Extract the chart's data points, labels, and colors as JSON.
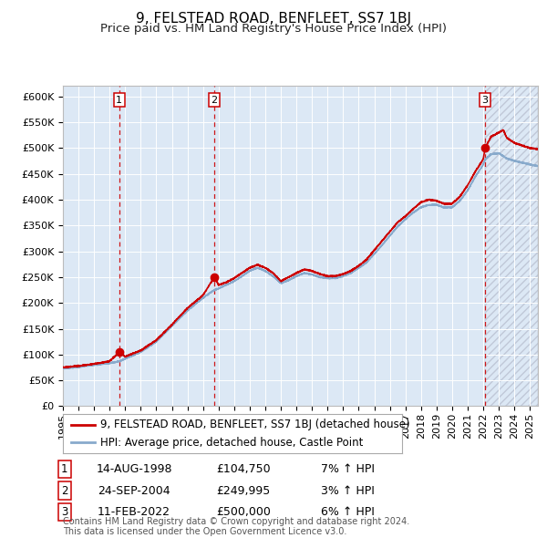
{
  "title": "9, FELSTEAD ROAD, BENFLEET, SS7 1BJ",
  "subtitle": "Price paid vs. HM Land Registry's House Price Index (HPI)",
  "ylim": [
    0,
    620000
  ],
  "yticks": [
    0,
    50000,
    100000,
    150000,
    200000,
    250000,
    300000,
    350000,
    400000,
    450000,
    500000,
    550000,
    600000
  ],
  "ytick_labels": [
    "£0",
    "£50K",
    "£100K",
    "£150K",
    "£200K",
    "£250K",
    "£300K",
    "£350K",
    "£400K",
    "£450K",
    "£500K",
    "£550K",
    "£600K"
  ],
  "xlim_start": 1995.0,
  "xlim_end": 2025.5,
  "background_color": "#ffffff",
  "plot_bg_color": "#e8e8e8",
  "grid_color": "#ffffff",
  "sale_color": "#cc0000",
  "hpi_color": "#88aacc",
  "region_color": "#dce8f5",
  "sale_label": "9, FELSTEAD ROAD, BENFLEET, SS7 1BJ (detached house)",
  "hpi_label": "HPI: Average price, detached house, Castle Point",
  "transactions": [
    {
      "num": 1,
      "date_label": "14-AUG-1998",
      "price_label": "£104,750",
      "hpi_pct": "7% ↑ HPI",
      "year": 1998.62,
      "price": 104750
    },
    {
      "num": 2,
      "date_label": "24-SEP-2004",
      "price_label": "£249,995",
      "hpi_pct": "3% ↑ HPI",
      "price": 249995,
      "year": 2004.73
    },
    {
      "num": 3,
      "date_label": "11-FEB-2022",
      "price_label": "£500,000",
      "hpi_pct": "6% ↑ HPI",
      "price": 500000,
      "year": 2022.12
    }
  ],
  "footer_text": "Contains HM Land Registry data © Crown copyright and database right 2024.\nThis data is licensed under the Open Government Licence v3.0.",
  "title_fontsize": 11,
  "subtitle_fontsize": 9.5,
  "tick_fontsize": 8,
  "legend_fontsize": 8.5,
  "table_fontsize": 9,
  "footer_fontsize": 7
}
